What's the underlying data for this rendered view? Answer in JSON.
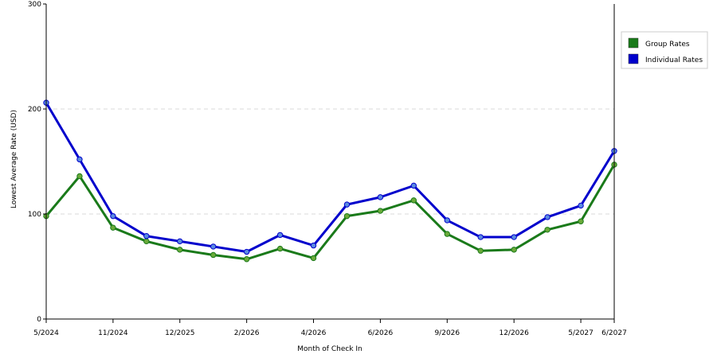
{
  "chart_data": {
    "type": "line",
    "title": "",
    "xlabel": "Month of Check In",
    "ylabel": "Lowest Average Rate (USD)",
    "ylim": [
      0,
      300
    ],
    "yticks": [
      0,
      100,
      200,
      300
    ],
    "grid": "horizontal dashed",
    "legend_position": "right",
    "x_tick_labels": [
      "5/2024",
      "",
      "11/2024",
      "",
      "12/2025",
      "",
      "2/2026",
      "",
      "4/2026",
      "",
      "6/2026",
      "",
      "9/2026",
      "",
      "12/2026",
      "",
      "5/2027",
      "6/2027"
    ],
    "series": [
      {
        "name": "Group Rates",
        "color": "#1a7a1a",
        "marker_color": "#6aaa3a",
        "values": [
          98,
          136,
          87,
          74,
          66,
          61,
          57,
          67,
          58,
          98,
          103,
          113,
          81,
          65,
          66,
          85,
          93,
          147
        ]
      },
      {
        "name": "Individual Rates",
        "color": "#0000cc",
        "marker_color": "#5a8ae0",
        "values": [
          206,
          152,
          98,
          79,
          74,
          69,
          64,
          80,
          70,
          109,
          116,
          127,
          94,
          78,
          78,
          97,
          108,
          160
        ]
      }
    ]
  }
}
